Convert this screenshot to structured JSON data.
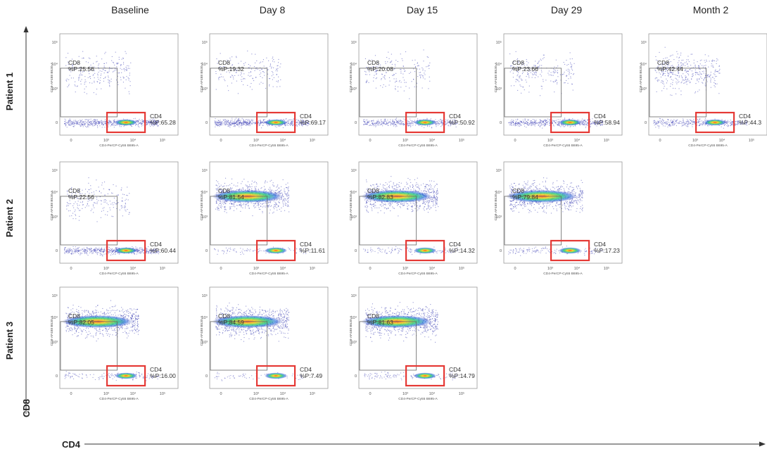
{
  "chart_data": {
    "type": "scatter",
    "description_axis": {
      "x_axis_label": "CD4",
      "y_axis_label": "CD8"
    },
    "columns": [
      "Baseline",
      "Day 8",
      "Day 15",
      "Day 29",
      "Month 2"
    ],
    "rows": [
      "Patient 1",
      "Patient 2",
      "Patient 3"
    ],
    "panel_axes": {
      "xlabel": "CD4-PerCP-Cy55 B695-A",
      "ylabel": "CD8-AF488 B530-A",
      "x_ticks": [
        "0",
        "10³",
        "10⁴",
        "10⁵"
      ],
      "y_ticks": [
        "0",
        "10³",
        "10⁴",
        "10⁵"
      ]
    },
    "gate_names": {
      "cd8": "CD8",
      "cd4": "CD4"
    },
    "gate_highlight_color": "#e53935",
    "panels": [
      {
        "patient": "Patient 1",
        "timepoint": "Baseline",
        "cd8_label": "%P:25.56",
        "cd4_label": "%P:65.28",
        "cd8_pct": 25.56,
        "cd4_pct": 65.28
      },
      {
        "patient": "Patient 1",
        "timepoint": "Day 8",
        "cd8_label": "%P:19.32",
        "cd4_label": "%P:69.17",
        "cd8_pct": 19.32,
        "cd4_pct": 69.17
      },
      {
        "patient": "Patient 1",
        "timepoint": "Day 15",
        "cd8_label": "%P:20.08",
        "cd4_label": "%P:50.92",
        "cd8_pct": 20.08,
        "cd4_pct": 50.92
      },
      {
        "patient": "Patient 1",
        "timepoint": "Day 29",
        "cd8_label": "%P:23.66",
        "cd4_label": "%P:58.94",
        "cd8_pct": 23.66,
        "cd4_pct": 58.94
      },
      {
        "patient": "Patient 1",
        "timepoint": "Month 2",
        "cd8_label": "%P:42.44",
        "cd4_label": "%P:44.3",
        "cd8_pct": 42.44,
        "cd4_pct": 44.3
      },
      {
        "patient": "Patient 2",
        "timepoint": "Baseline",
        "cd8_label": "%P:22.56",
        "cd4_label": "%P:60.44",
        "cd8_pct": 22.56,
        "cd4_pct": 60.44
      },
      {
        "patient": "Patient 2",
        "timepoint": "Day 8",
        "cd8_label": "%P:81.54",
        "cd4_label": "%P:11.61",
        "cd8_pct": 81.54,
        "cd4_pct": 11.61
      },
      {
        "patient": "Patient 2",
        "timepoint": "Day 15",
        "cd8_label": "%P:82.83",
        "cd4_label": "%P:14.32",
        "cd8_pct": 82.83,
        "cd4_pct": 14.32
      },
      {
        "patient": "Patient 2",
        "timepoint": "Day 29",
        "cd8_label": "%P:79.84",
        "cd4_label": "%P:17.23",
        "cd8_pct": 79.84,
        "cd4_pct": 17.23
      },
      {
        "patient": "Patient 3",
        "timepoint": "Baseline",
        "cd8_label": "%P:82.05",
        "cd4_label": "%P:16.00",
        "cd8_pct": 82.05,
        "cd4_pct": 16.0
      },
      {
        "patient": "Patient 3",
        "timepoint": "Day 8",
        "cd8_label": "%P:84.59",
        "cd4_label": "%P:7.49",
        "cd8_pct": 84.59,
        "cd4_pct": 7.49
      },
      {
        "patient": "Patient 3",
        "timepoint": "Day 15",
        "cd8_label": "%P:81.63",
        "cd4_label": "%P:14.79",
        "cd8_pct": 81.63,
        "cd4_pct": 14.79
      }
    ]
  }
}
